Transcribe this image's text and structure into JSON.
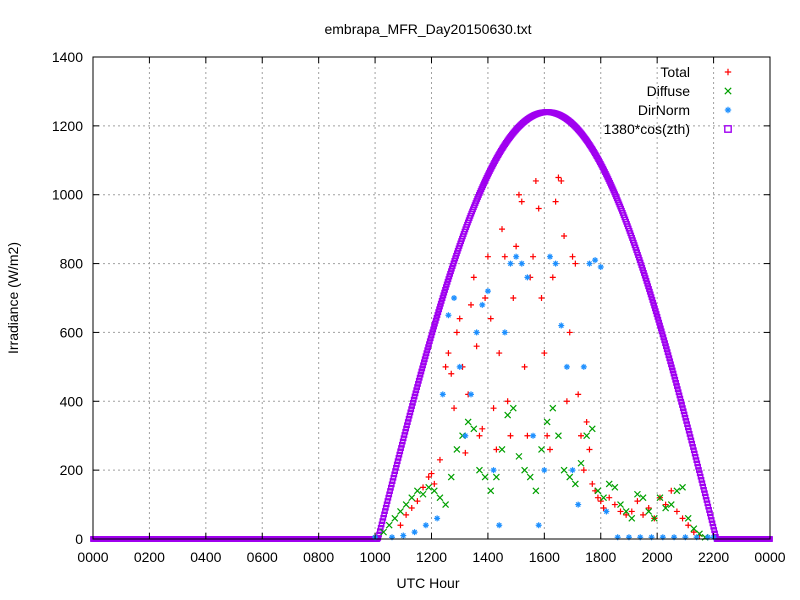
{
  "chart_data": {
    "type": "scatter",
    "title": "embrapa_MFR_Day20150630.txt",
    "xlabel": "UTC Hour",
    "ylabel": "Irradiance (W/m2)",
    "xlim": [
      0,
      24
    ],
    "ylim": [
      0,
      1400
    ],
    "x_ticks": [
      "0000",
      "0200",
      "0400",
      "0600",
      "0800",
      "1000",
      "1200",
      "1400",
      "1600",
      "1800",
      "2000",
      "2200",
      "0000"
    ],
    "y_ticks": [
      "0",
      "200",
      "400",
      "600",
      "800",
      "1000",
      "1200",
      "1400"
    ],
    "grid": true,
    "legend_position": "top-right",
    "series": [
      {
        "name": "Total",
        "marker": "plus",
        "color": "#ff0000",
        "x": [
          10.9,
          11.1,
          11.3,
          11.5,
          11.7,
          11.9,
          12.0,
          12.1,
          12.3,
          12.5,
          12.6,
          12.7,
          12.8,
          12.9,
          13.0,
          13.1,
          13.2,
          13.3,
          13.4,
          13.5,
          13.6,
          13.7,
          13.8,
          13.9,
          14.0,
          14.1,
          14.2,
          14.3,
          14.4,
          14.5,
          14.6,
          14.7,
          14.8,
          14.9,
          15.0,
          15.1,
          15.2,
          15.3,
          15.4,
          15.5,
          15.6,
          15.7,
          15.8,
          15.9,
          16.0,
          16.1,
          16.2,
          16.3,
          16.4,
          16.5,
          16.6,
          16.7,
          16.8,
          16.9,
          17.0,
          17.1,
          17.2,
          17.3,
          17.4,
          17.5,
          17.6,
          17.7,
          17.8,
          17.9,
          18.0,
          18.1,
          18.3,
          18.5,
          18.7,
          18.9,
          19.1,
          19.3,
          19.5,
          19.7,
          19.9,
          20.1,
          20.3,
          20.5,
          20.7,
          20.9,
          21.1,
          21.3,
          21.5
        ],
        "y": [
          40,
          70,
          90,
          110,
          150,
          180,
          190,
          160,
          230,
          500,
          540,
          480,
          380,
          600,
          640,
          500,
          250,
          420,
          680,
          760,
          560,
          300,
          320,
          700,
          820,
          640,
          380,
          260,
          540,
          900,
          820,
          400,
          300,
          700,
          850,
          1000,
          980,
          500,
          300,
          760,
          820,
          1040,
          960,
          700,
          540,
          300,
          260,
          760,
          980,
          1050,
          1040,
          880,
          400,
          600,
          820,
          800,
          420,
          300,
          200,
          340,
          260,
          160,
          140,
          120,
          110,
          90,
          120,
          100,
          80,
          70,
          80,
          110,
          70,
          90,
          60,
          120,
          100,
          140,
          80,
          60,
          40,
          20,
          10
        ]
      },
      {
        "name": "Diffuse",
        "marker": "cross",
        "color": "#00a000",
        "x": [
          10.3,
          10.5,
          10.7,
          10.9,
          11.1,
          11.3,
          11.5,
          11.7,
          11.9,
          12.1,
          12.3,
          12.5,
          12.7,
          12.9,
          13.1,
          13.3,
          13.5,
          13.7,
          13.9,
          14.1,
          14.3,
          14.5,
          14.7,
          14.9,
          15.1,
          15.3,
          15.5,
          15.7,
          15.9,
          16.1,
          16.3,
          16.5,
          16.7,
          16.9,
          17.1,
          17.3,
          17.5,
          17.7,
          17.9,
          18.1,
          18.3,
          18.5,
          18.7,
          18.9,
          19.1,
          19.3,
          19.5,
          19.7,
          19.9,
          20.1,
          20.3,
          20.5,
          20.7,
          20.9,
          21.1,
          21.3,
          21.5,
          21.7
        ],
        "y": [
          20,
          40,
          60,
          80,
          100,
          120,
          140,
          130,
          150,
          140,
          120,
          100,
          180,
          260,
          300,
          340,
          320,
          200,
          180,
          140,
          180,
          260,
          360,
          380,
          240,
          200,
          180,
          140,
          260,
          340,
          380,
          300,
          200,
          180,
          160,
          220,
          300,
          320,
          140,
          120,
          160,
          150,
          100,
          80,
          60,
          130,
          120,
          80,
          60,
          120,
          90,
          100,
          140,
          150,
          60,
          30,
          15,
          5
        ]
      },
      {
        "name": "DirNorm",
        "marker": "star",
        "color": "#1e90ff",
        "x": [
          10.0,
          10.6,
          11.0,
          11.4,
          11.8,
          12.2,
          12.4,
          12.6,
          12.8,
          13.0,
          13.2,
          13.4,
          13.6,
          13.8,
          14.0,
          14.2,
          14.4,
          14.6,
          14.8,
          15.0,
          15.2,
          15.4,
          15.6,
          15.8,
          16.0,
          16.2,
          16.4,
          16.6,
          16.8,
          17.0,
          17.2,
          17.4,
          17.6,
          17.8,
          18.0,
          18.2,
          18.6,
          19.0,
          19.4,
          19.8,
          20.2,
          20.6,
          21.0,
          21.4,
          21.8,
          22.0
        ],
        "y": [
          5,
          5,
          10,
          20,
          40,
          60,
          420,
          650,
          700,
          500,
          300,
          420,
          600,
          680,
          720,
          200,
          40,
          600,
          800,
          820,
          800,
          760,
          300,
          40,
          200,
          820,
          800,
          620,
          500,
          200,
          100,
          500,
          800,
          810,
          790,
          80,
          5,
          5,
          5,
          5,
          5,
          5,
          5,
          5,
          5,
          5
        ]
      },
      {
        "name": "1380*cos(zth)",
        "marker": "square",
        "color": "#a000f0",
        "model": {
          "peak": 1240,
          "peak_hour": 16.1,
          "rise_hour": 10.1,
          "set_hour": 22.1
        }
      }
    ]
  }
}
